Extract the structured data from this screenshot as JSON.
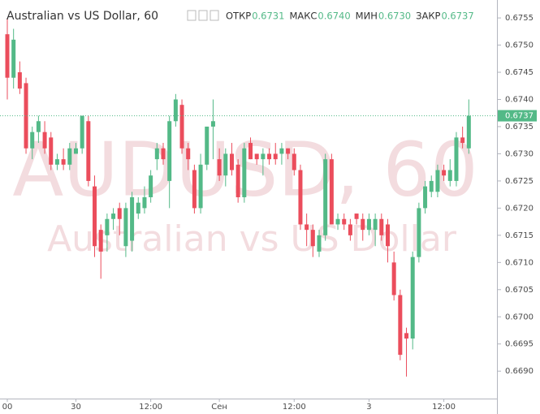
{
  "chart_data": {
    "type": "candlestick",
    "title": "Australian vs US Dollar, 60",
    "ohlc_legend": [
      {
        "label": "ОТКР",
        "value": "0.6731"
      },
      {
        "label": "МАКС",
        "value": "0.6740"
      },
      {
        "label": "МИН",
        "value": "0.6730"
      },
      {
        "label": "ЗАКР",
        "value": "0.6737"
      }
    ],
    "watermark": [
      "AUDUSD, 60",
      "Australian vs US Dollar"
    ],
    "up_color": "#53b987",
    "down_color": "#eb4d5c",
    "open": [
      0.6752,
      0.6744,
      0.6745,
      0.6743,
      0.6731,
      0.6734,
      0.6734,
      0.6733,
      0.6728,
      0.6729,
      0.6728,
      0.673,
      0.6731,
      0.6736,
      0.6724,
      0.6716,
      0.6715,
      0.6718,
      0.672,
      0.6713,
      0.6714,
      0.6719,
      0.672,
      0.6722,
      0.6729,
      0.6731,
      0.6725,
      0.6736,
      0.6739,
      0.6731,
      0.6727,
      0.672,
      0.6728,
      0.6735,
      0.6729,
      0.6726,
      0.673,
      0.6728,
      0.6722,
      0.6732,
      0.673,
      0.6729,
      0.673,
      0.673,
      0.673,
      0.6731,
      0.673,
      0.6727,
      0.6717,
      0.6716,
      0.6712,
      0.6715,
      0.6729,
      0.6717,
      0.6718,
      0.6717,
      0.6719,
      0.6718,
      0.6716,
      0.6716,
      0.6718,
      0.6717,
      0.671,
      0.6704,
      0.6697,
      0.6696,
      0.6711,
      0.672,
      0.6723,
      0.6723,
      0.6727,
      0.6725,
      0.6725,
      0.6733,
      0.6731
    ],
    "high": [
      0.6755,
      0.6753,
      0.6747,
      0.6744,
      0.6735,
      0.6737,
      0.6736,
      0.6734,
      0.673,
      0.6731,
      0.6732,
      0.6732,
      0.6737,
      0.6737,
      0.6726,
      0.6717,
      0.6719,
      0.672,
      0.6721,
      0.6721,
      0.6723,
      0.6722,
      0.6724,
      0.6727,
      0.6732,
      0.6732,
      0.6737,
      0.6741,
      0.674,
      0.6732,
      0.6728,
      0.673,
      0.6735,
      0.674,
      0.6731,
      0.6731,
      0.6732,
      0.6729,
      0.6732,
      0.6733,
      0.673,
      0.6731,
      0.6731,
      0.6732,
      0.6732,
      0.6731,
      0.6731,
      0.6728,
      0.6719,
      0.6717,
      0.6716,
      0.673,
      0.673,
      0.6719,
      0.6719,
      0.6718,
      0.6719,
      0.6719,
      0.6719,
      0.6719,
      0.6719,
      0.6718,
      0.6712,
      0.6705,
      0.6698,
      0.6712,
      0.6721,
      0.6725,
      0.6726,
      0.6728,
      0.6728,
      0.6729,
      0.6734,
      0.6735,
      0.674
    ],
    "low": [
      0.674,
      0.6742,
      0.6741,
      0.673,
      0.6729,
      0.6732,
      0.673,
      0.6727,
      0.6727,
      0.6727,
      0.6727,
      0.673,
      0.673,
      0.6724,
      0.6711,
      0.6707,
      0.6712,
      0.6716,
      0.6715,
      0.6711,
      0.6712,
      0.6718,
      0.6719,
      0.6721,
      0.6727,
      0.6728,
      0.672,
      0.6735,
      0.673,
      0.6727,
      0.6719,
      0.6719,
      0.6727,
      0.6729,
      0.6725,
      0.6724,
      0.6726,
      0.6721,
      0.6721,
      0.6729,
      0.6728,
      0.6726,
      0.6728,
      0.6728,
      0.6728,
      0.6729,
      0.6726,
      0.6716,
      0.6713,
      0.6711,
      0.6711,
      0.6714,
      0.6717,
      0.6716,
      0.6716,
      0.6714,
      0.6717,
      0.6714,
      0.6715,
      0.6713,
      0.6714,
      0.671,
      0.6703,
      0.6692,
      0.6689,
      0.6694,
      0.671,
      0.6719,
      0.6722,
      0.6722,
      0.6725,
      0.6724,
      0.6724,
      0.6731,
      0.673
    ],
    "close": [
      0.6744,
      0.6751,
      0.6742,
      0.6731,
      0.6734,
      0.6736,
      0.6731,
      0.6728,
      0.6729,
      0.6728,
      0.6731,
      0.6731,
      0.6737,
      0.6725,
      0.6713,
      0.6712,
      0.6718,
      0.6719,
      0.6718,
      0.672,
      0.6722,
      0.6721,
      0.6722,
      0.6726,
      0.6731,
      0.6729,
      0.6736,
      0.674,
      0.6731,
      0.6729,
      0.672,
      0.6728,
      0.6735,
      0.6736,
      0.6726,
      0.673,
      0.6727,
      0.6722,
      0.6731,
      0.6729,
      0.6729,
      0.673,
      0.6729,
      0.6729,
      0.6731,
      0.673,
      0.6727,
      0.6717,
      0.6716,
      0.6713,
      0.6715,
      0.6729,
      0.6717,
      0.6718,
      0.6717,
      0.6715,
      0.6718,
      0.6716,
      0.6718,
      0.6718,
      0.6715,
      0.6713,
      0.6704,
      0.6693,
      0.6696,
      0.6711,
      0.672,
      0.6724,
      0.6725,
      0.6727,
      0.6726,
      0.6727,
      0.6733,
      0.6732,
      0.6737
    ],
    "last_price": 0.6737,
    "ylim": [
      0.66851,
      0.67583
    ],
    "yticks": [
      {
        "value": 0.669,
        "label": "0.6690"
      },
      0.6695,
      {
        "value": 0.67,
        "label": "0.6700"
      },
      0.6705,
      {
        "value": 0.671,
        "label": "0.6710"
      },
      0.6715,
      {
        "value": 0.672,
        "label": "0.6720"
      },
      0.6725,
      {
        "value": 0.673,
        "label": "0.6730"
      },
      0.6735,
      {
        "value": 0.674,
        "label": "0.6740"
      },
      0.6745,
      {
        "value": 0.675,
        "label": "0.6750"
      },
      0.6755
    ],
    "xticks": [
      {
        "value": 0,
        "label": "00"
      },
      {
        "value": 11,
        "label": "30"
      },
      {
        "value": 23,
        "label": "12:00"
      },
      {
        "value": 34,
        "label": "Сен"
      },
      {
        "value": 46,
        "label": "12:00"
      },
      {
        "value": 58,
        "label": "3"
      },
      {
        "value": 70,
        "label": "12:00"
      }
    ]
  }
}
